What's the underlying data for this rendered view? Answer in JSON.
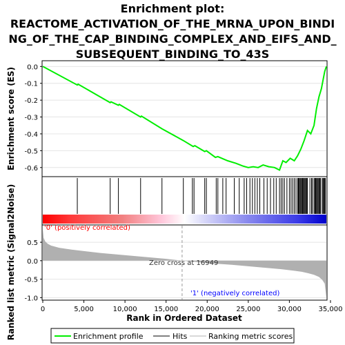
{
  "title_lines": [
    "Enrichment plot:",
    "REACTOME_ACTIVATION_OF_THE_MRNA_UPON_BINDI",
    "NG_OF_THE_CAP_BINDING_COMPLEX_AND_EIFS_AND_",
    "SUBSEQUENT_BINDING_TO_43S"
  ],
  "colors": {
    "enrichment_line": "#00ee00",
    "hits": "#000000",
    "metric_fill": "#b0b0b0",
    "positive_label": "#ff0000",
    "negative_label": "#0000ff",
    "heat_red": "#ff0000",
    "heat_blue": "#0000ff"
  },
  "chart_data": [
    {
      "type": "line",
      "panel": "enrichment",
      "ylabel": "Enrichment score (ES)",
      "xlim": [
        0,
        34500
      ],
      "ylim": [
        -0.65,
        0.03
      ],
      "yticks": [
        0.0,
        -0.1,
        -0.2,
        -0.3,
        -0.4,
        -0.5,
        -0.6
      ],
      "ytick_labels": [
        "0.0",
        "-0.1",
        "-0.2",
        "-0.3",
        "-0.4",
        "-0.5",
        "-0.6"
      ],
      "grid": true,
      "series": [
        {
          "name": "Enrichment profile",
          "x": [
            0,
            4200,
            4300,
            8200,
            8300,
            9200,
            9300,
            11900,
            12000,
            14500,
            17100,
            18300,
            18500,
            19700,
            19900,
            21000,
            21300,
            22000,
            22500,
            23500,
            24300,
            25000,
            25600,
            26200,
            26800,
            27500,
            28200,
            28800,
            29200,
            29600,
            30100,
            30600,
            31000,
            31400,
            31800,
            32200,
            32600,
            33000,
            33300,
            33600,
            33900,
            34100,
            34300,
            34500
          ],
          "y": [
            0.0,
            -0.11,
            -0.105,
            -0.215,
            -0.21,
            -0.23,
            -0.225,
            -0.3,
            -0.295,
            -0.37,
            -0.44,
            -0.475,
            -0.47,
            -0.505,
            -0.5,
            -0.54,
            -0.535,
            -0.55,
            -0.56,
            -0.575,
            -0.59,
            -0.6,
            -0.595,
            -0.6,
            -0.585,
            -0.595,
            -0.6,
            -0.615,
            -0.56,
            -0.57,
            -0.545,
            -0.56,
            -0.53,
            -0.49,
            -0.44,
            -0.38,
            -0.4,
            -0.35,
            -0.25,
            -0.18,
            -0.13,
            -0.08,
            -0.03,
            0.0
          ]
        }
      ],
      "hits_x": [
        4200,
        8200,
        9200,
        11900,
        14500,
        17100,
        18200,
        18400,
        19700,
        19900,
        21100,
        21300,
        21900,
        22300,
        23300,
        23900,
        24500,
        24800,
        25200,
        25500,
        25800,
        26100,
        26400,
        26900,
        27300,
        27700,
        28100,
        28400,
        28800,
        29000,
        29200,
        29400,
        29700,
        30000,
        30200,
        30400,
        30600,
        30800,
        31000,
        31100,
        31200,
        31300,
        31400,
        31500,
        31600,
        31700,
        31800,
        31900,
        32000,
        32100,
        32200,
        32500,
        32700,
        32800,
        33000,
        33100,
        33200,
        33300,
        33400,
        33500,
        33600,
        33700,
        33800,
        34000,
        34100,
        34200,
        34300,
        34400
      ]
    },
    {
      "type": "area",
      "panel": "ranked_metric",
      "xlabel": "Rank in Ordered Dataset",
      "ylabel": "Ranked list metric (Signal2Noise)",
      "xlim": [
        0,
        34500
      ],
      "ylim": [
        -1.05,
        0.95
      ],
      "yticks": [
        0.5,
        0.0,
        -0.5,
        -1.0
      ],
      "ytick_labels": [
        "0.5",
        "0.0",
        "-0.5",
        "-1.0"
      ],
      "xticks": [
        0,
        5000,
        10000,
        15000,
        20000,
        25000,
        30000,
        35000
      ],
      "xtick_labels": [
        "0",
        "5,000",
        "10,000",
        "15,000",
        "20,000",
        "25,000",
        "30,000",
        "35,000"
      ],
      "grid": true,
      "series": [
        {
          "name": "Ranking metric scores",
          "x": [
            0,
            100,
            300,
            600,
            1000,
            2000,
            3500,
            5000,
            7000,
            9000,
            11000,
            13000,
            15000,
            16949,
            19000,
            21000,
            23000,
            25000,
            27000,
            29000,
            30500,
            31500,
            32300,
            33000,
            33600,
            34000,
            34300,
            34500
          ],
          "y": [
            0.85,
            0.62,
            0.52,
            0.46,
            0.41,
            0.35,
            0.3,
            0.26,
            0.21,
            0.17,
            0.13,
            0.09,
            0.05,
            0.0,
            -0.04,
            -0.08,
            -0.11,
            -0.15,
            -0.19,
            -0.23,
            -0.27,
            -0.3,
            -0.34,
            -0.38,
            -0.44,
            -0.52,
            -0.62,
            -1.0
          ]
        }
      ],
      "annotations": {
        "zero_cross": "Zero cross at 16949",
        "zero_cross_x": 16949,
        "positive": "'0' (positively correlated)",
        "negative": "'1' (negatively correlated)"
      }
    }
  ],
  "legend": {
    "items": [
      {
        "label": "Enrichment profile",
        "color": "#00ee00"
      },
      {
        "label": "Hits",
        "color": "#000000"
      },
      {
        "label": "Ranking metric scores",
        "color": "#b0b0b0"
      }
    ],
    "placement": "bottom"
  }
}
